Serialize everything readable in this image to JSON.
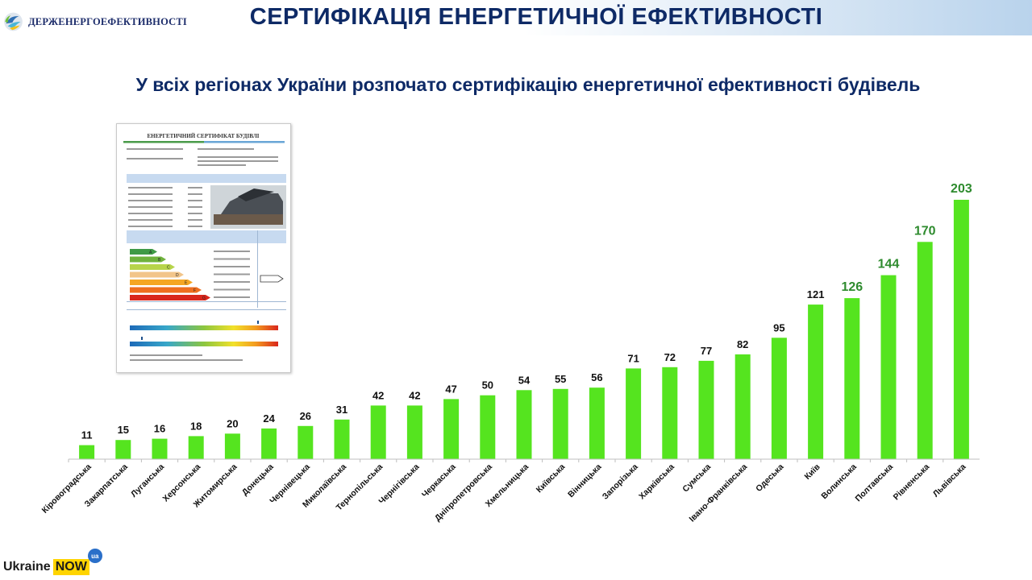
{
  "header": {
    "org_name": "ДЕРЖЕНЕРГОЕФЕКТИВНОСТІ",
    "title": "СЕРТИФІКАЦІЯ ЕНЕРГЕТИЧНОЇ ЕФЕКТИВНОСТІ",
    "subtitle": "У всіх регіонах України розпочато сертифікацію енергетичної ефективності будівель"
  },
  "footer": {
    "brand_word": "Ukraine",
    "brand_now": "NOW",
    "brand_badge": "ua"
  },
  "certificate": {
    "title": "ЕНЕРГЕТИЧНИЙ СЕРТИФІКАТ БУДІВЛІ",
    "scale_labels": [
      "A",
      "B",
      "C",
      "D",
      "E",
      "F",
      "G"
    ]
  },
  "colors": {
    "bar_fill": "#55e41f",
    "label_dark": "#111111",
    "label_green": "#2e8b2e",
    "title_navy": "#0e2a66"
  },
  "chart_data": {
    "type": "bar",
    "title": "",
    "xlabel": "",
    "ylabel": "",
    "ylim": [
      0,
      220
    ],
    "grid": false,
    "legend": "none",
    "categories": [
      "Кіровоградська",
      "Закарпатська",
      "Луганська",
      "Херсонська",
      "Житомирська",
      "Донецька",
      "Чернівецька",
      "Миколаївська",
      "Тернопільська",
      "Чернігівська",
      "Черкаська",
      "Дніпропетровська",
      "Хмельницька",
      "Київська",
      "Вінницька",
      "Запорізька",
      "Харківська",
      "Сумська",
      "Івано-Франківська",
      "Одеська",
      "Київ",
      "Волинська",
      "Полтавська",
      "Рівненська",
      "Львівська"
    ],
    "values": [
      11,
      15,
      16,
      18,
      20,
      24,
      26,
      31,
      42,
      42,
      47,
      50,
      54,
      55,
      56,
      71,
      72,
      77,
      82,
      95,
      121,
      126,
      144,
      170,
      203
    ],
    "highlighted_labels": [
      21,
      22,
      23,
      24
    ]
  }
}
